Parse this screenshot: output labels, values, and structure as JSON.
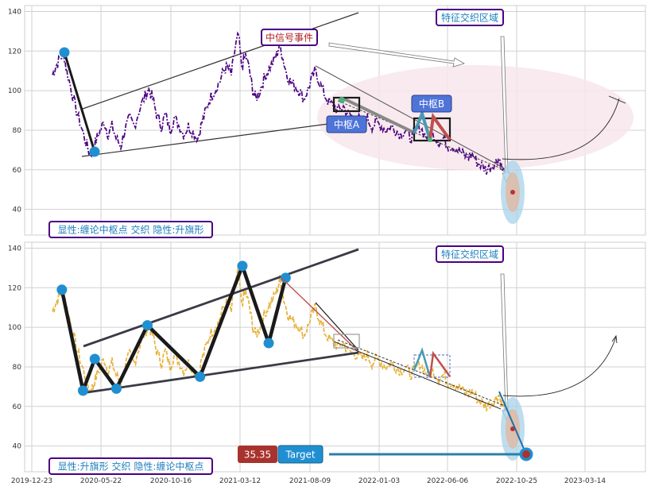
{
  "colors": {
    "purple": "#4b0082",
    "orange_dashed": "#e8b23a",
    "dot_blue": "#1f8fd1",
    "zhongshu_blue": "#4f74d8",
    "zhongxinhao_red": "#b02020",
    "price_red": "#a8322d",
    "ellipse_pink": "#f7e6eb",
    "grid": "#d0d0d0"
  },
  "chart_data": [
    {
      "type": "line",
      "panel": "top",
      "series": [],
      "x_ticks": [
        "2019-12-23",
        "2020-05-22",
        "2020-10-16",
        "2021-03-12",
        "2021-08-09",
        "2022-01-03",
        "2022-06-06",
        "2022-10-25",
        "2023-03-14"
      ],
      "y_ticks": [
        40,
        60,
        80,
        100,
        120,
        140
      ],
      "ylim": [
        27,
        143
      ],
      "grid": true,
      "annotations": {
        "top_box": "特征交织区域",
        "signal_box": "中信号事件",
        "zhongshu_a": "中枢A",
        "zhongshu_b": "中枢B",
        "bottom_box": "显性:缠论中枢点 交织 隐性:升旗形"
      }
    },
    {
      "type": "line",
      "panel": "bottom",
      "series": [],
      "x_ticks": [
        "2019-12-23",
        "2020-05-22",
        "2020-10-16",
        "2021-03-12",
        "2021-08-09",
        "2022-01-03",
        "2022-06-06",
        "2022-10-25",
        "2023-03-14"
      ],
      "y_ticks": [
        40,
        60,
        80,
        100,
        120,
        140
      ],
      "ylim": [
        27,
        143
      ],
      "grid": true,
      "zigzag_points": [
        {
          "date": "2020-02-25",
          "y": 119
        },
        {
          "date": "2020-04-10",
          "y": 68
        },
        {
          "date": "2020-05-05",
          "y": 84
        },
        {
          "date": "2020-06-20",
          "y": 69
        },
        {
          "date": "2020-08-25",
          "y": 101
        },
        {
          "date": "2020-12-15",
          "y": 75
        },
        {
          "date": "2021-03-15",
          "y": 131
        },
        {
          "date": "2021-05-10",
          "y": 92
        },
        {
          "date": "2021-06-15",
          "y": 125
        }
      ],
      "annotations": {
        "top_box": "特征交织区域",
        "bottom_box": "显性:升旗形 交织 隐性:缠论中枢点",
        "price_value": "35.35",
        "target_label": "Target"
      }
    }
  ]
}
